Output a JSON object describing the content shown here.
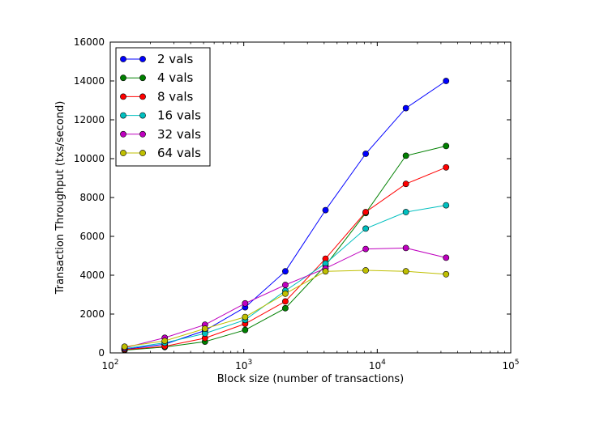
{
  "chart_data": {
    "type": "line",
    "title": "",
    "xlabel": "Block size (number of transactions)",
    "ylabel": "Transaction Throughput (txs/second)",
    "xscale": "log",
    "xlim": [
      100,
      100000
    ],
    "ylim": [
      0,
      16000
    ],
    "grid": false,
    "legend_position": "top-left",
    "x": [
      128,
      256,
      512,
      1024,
      2048,
      4096,
      8192,
      16384,
      32768
    ],
    "x_ticks": [
      {
        "value": 100,
        "base": "10",
        "exp": "2"
      },
      {
        "value": 1000,
        "base": "10",
        "exp": "3"
      },
      {
        "value": 10000,
        "base": "10",
        "exp": "4"
      },
      {
        "value": 100000,
        "base": "10",
        "exp": "5"
      }
    ],
    "y_ticks": [
      0,
      2000,
      4000,
      6000,
      8000,
      10000,
      12000,
      14000,
      16000
    ],
    "y_tick_labels": [
      "0",
      "2000",
      "4000",
      "6000",
      "8000",
      "10000",
      "12000",
      "14000",
      "16000"
    ],
    "series": [
      {
        "name": "2 vals",
        "color": "#0000ff",
        "values": [
          180,
          450,
          1150,
          2350,
          4200,
          7350,
          10250,
          12600,
          14000
        ]
      },
      {
        "name": "4 vals",
        "color": "#008000",
        "values": [
          140,
          300,
          580,
          1180,
          2300,
          4500,
          7200,
          10150,
          10650
        ]
      },
      {
        "name": "8 vals",
        "color": "#ff0000",
        "values": [
          170,
          340,
          760,
          1500,
          2650,
          4850,
          7250,
          8700,
          9550
        ]
      },
      {
        "name": "16 vals",
        "color": "#00bfbf",
        "values": [
          220,
          520,
          1000,
          1700,
          3200,
          4600,
          6400,
          7250,
          7600
        ]
      },
      {
        "name": "32 vals",
        "color": "#bf00bf",
        "values": [
          260,
          780,
          1450,
          2550,
          3500,
          4350,
          5350,
          5400,
          4900
        ]
      },
      {
        "name": "64 vals",
        "color": "#bfbf00",
        "values": [
          320,
          620,
          1250,
          1850,
          3050,
          4200,
          4250,
          4200,
          4050
        ]
      }
    ]
  }
}
